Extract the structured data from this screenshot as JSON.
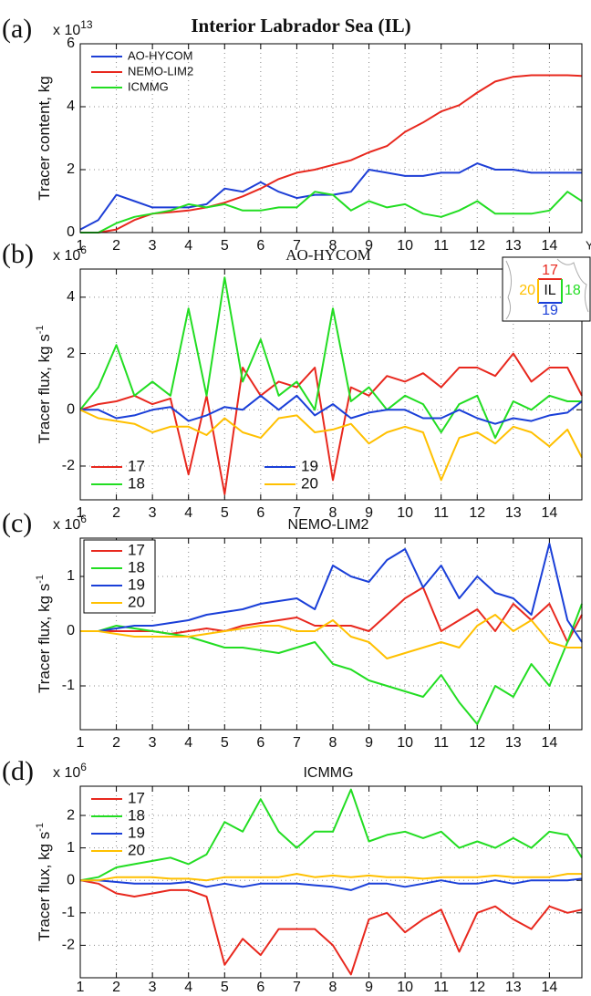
{
  "chart_data": [
    {
      "type": "line",
      "panel_label": "(a)",
      "title": "Interior Labrador Sea (IL)",
      "multiplier": {
        "base": "x 10",
        "exponent": "13"
      },
      "y_label": "Tracer content, kg",
      "x_label": "Years",
      "x": [
        1,
        1.5,
        2,
        2.5,
        3,
        3.5,
        4,
        4.5,
        5,
        5.5,
        6,
        6.5,
        7,
        7.5,
        8,
        8.5,
        9,
        9.5,
        10,
        10.5,
        11,
        11.5,
        12,
        12.5,
        13,
        13.5,
        14,
        14.5,
        14.9
      ],
      "xlim": [
        1,
        14.9
      ],
      "ylim": [
        0,
        6
      ],
      "xticks": [
        1,
        2,
        3,
        4,
        5,
        6,
        7,
        8,
        9,
        10,
        11,
        12,
        13,
        14
      ],
      "yticks": [
        0,
        2,
        4,
        6
      ],
      "grid": true,
      "legend": {
        "loc": "upper left",
        "columns": 1,
        "frame": false
      },
      "series": [
        {
          "name": "AO-HYCOM",
          "color": "#1e3fd6",
          "values": [
            0.1,
            0.4,
            1.2,
            1.0,
            0.8,
            0.8,
            0.8,
            0.9,
            1.4,
            1.3,
            1.6,
            1.3,
            1.1,
            1.2,
            1.2,
            1.3,
            2.0,
            1.9,
            1.8,
            1.8,
            1.9,
            1.9,
            2.2,
            2.0,
            2.0,
            1.9,
            1.9,
            1.9,
            1.9
          ]
        },
        {
          "name": "NEMO-LIM2",
          "color": "#e8281e",
          "values": [
            0,
            0,
            0.1,
            0.4,
            0.6,
            0.65,
            0.7,
            0.8,
            0.95,
            1.15,
            1.4,
            1.7,
            1.9,
            2.0,
            2.15,
            2.3,
            2.55,
            2.75,
            3.2,
            3.5,
            3.85,
            4.05,
            4.45,
            4.8,
            4.95,
            5.0,
            5.0,
            5.0,
            4.98
          ]
        },
        {
          "name": "ICMMG",
          "color": "#22dd22",
          "values": [
            0,
            0,
            0.3,
            0.5,
            0.6,
            0.7,
            0.9,
            0.8,
            0.9,
            0.7,
            0.7,
            0.8,
            0.8,
            1.3,
            1.2,
            0.7,
            1.0,
            0.8,
            0.9,
            0.6,
            0.5,
            0.7,
            1.0,
            0.6,
            0.6,
            0.6,
            0.7,
            1.3,
            1.0
          ]
        }
      ]
    },
    {
      "type": "line",
      "panel_label": "(b)",
      "title": "AO-HYCOM",
      "multiplier": {
        "base": "x 10",
        "exponent": "6"
      },
      "y_label": "Tracer flux, kg s",
      "y_label_exponent": "-1",
      "x": [
        1,
        1.5,
        2,
        2.5,
        3,
        3.5,
        4,
        4.5,
        5,
        5.5,
        6,
        6.5,
        7,
        7.5,
        8,
        8.5,
        9,
        9.5,
        10,
        10.5,
        11,
        11.5,
        12,
        12.5,
        13,
        13.5,
        14,
        14.5,
        14.9
      ],
      "xlim": [
        1,
        14.9
      ],
      "ylim": [
        -3.2,
        5
      ],
      "xticks": [
        1,
        2,
        3,
        4,
        5,
        6,
        7,
        8,
        9,
        10,
        11,
        12,
        13,
        14
      ],
      "yticks": [
        -2,
        0,
        2,
        4
      ],
      "grid": true,
      "legend": {
        "loc": "lower left",
        "columns": 2,
        "frame": false
      },
      "inset": {
        "center": "IL",
        "north": "17",
        "east": "18",
        "south": "19",
        "west": "20"
      },
      "series": [
        {
          "name": "17",
          "color": "#e8281e",
          "values": [
            0,
            0.2,
            0.3,
            0.5,
            0.2,
            0.4,
            -2.3,
            0.5,
            -3.0,
            1.5,
            0.5,
            1.0,
            0.8,
            1.5,
            -2.5,
            0.8,
            0.5,
            1.2,
            1.0,
            1.3,
            0.8,
            1.5,
            1.5,
            1.2,
            2.0,
            1.0,
            1.5,
            1.5,
            0.5
          ]
        },
        {
          "name": "18",
          "color": "#22dd22",
          "values": [
            0,
            0.8,
            2.3,
            0.5,
            1.0,
            0.5,
            3.6,
            0.5,
            4.7,
            1.0,
            2.5,
            0.5,
            1.0,
            0,
            3.6,
            0.3,
            0.8,
            0,
            0.5,
            0.2,
            -0.8,
            0.2,
            0.5,
            -1.0,
            0.3,
            0,
            0.5,
            0.3,
            0.3
          ]
        },
        {
          "name": "19",
          "color": "#1a3fd8",
          "values": [
            0,
            0,
            -0.3,
            -0.2,
            0,
            0.1,
            -0.4,
            -0.2,
            0.1,
            0,
            0.5,
            0,
            0.5,
            -0.2,
            0.2,
            -0.3,
            -0.1,
            0,
            0,
            -0.3,
            -0.3,
            0,
            -0.3,
            -0.5,
            -0.3,
            -0.4,
            -0.2,
            -0.1,
            0.3
          ]
        },
        {
          "name": "20",
          "color": "#ffc000",
          "values": [
            0,
            -0.3,
            -0.4,
            -0.5,
            -0.8,
            -0.6,
            -0.6,
            -0.9,
            -0.3,
            -0.8,
            -1.0,
            -0.3,
            -0.2,
            -0.8,
            -0.7,
            -0.5,
            -1.2,
            -0.8,
            -0.6,
            -0.8,
            -2.5,
            -1.0,
            -0.8,
            -1.2,
            -0.6,
            -0.8,
            -1.3,
            -0.7,
            -1.7
          ]
        }
      ]
    },
    {
      "type": "line",
      "panel_label": "(c)",
      "title": "NEMO-LIM2",
      "multiplier": {
        "base": "x 10",
        "exponent": "6"
      },
      "y_label": "Tracer flux, kg s",
      "y_label_exponent": "-1",
      "x": [
        1,
        1.5,
        2,
        2.5,
        3,
        3.5,
        4,
        4.5,
        5,
        5.5,
        6,
        6.5,
        7,
        7.5,
        8,
        8.5,
        9,
        9.5,
        10,
        10.5,
        11,
        11.5,
        12,
        12.5,
        13,
        13.5,
        14,
        14.5,
        14.9
      ],
      "xlim": [
        1,
        14.9
      ],
      "ylim": [
        -1.8,
        1.7
      ],
      "xticks": [
        1,
        2,
        3,
        4,
        5,
        6,
        7,
        8,
        9,
        10,
        11,
        12,
        13,
        14
      ],
      "yticks": [
        -1,
        0,
        1
      ],
      "grid": true,
      "legend": {
        "loc": "upper left",
        "columns": 1,
        "frame": true
      },
      "series": [
        {
          "name": "17",
          "color": "#e8281e",
          "values": [
            0,
            0,
            0,
            0,
            0,
            -0.05,
            0,
            0.05,
            0,
            0.1,
            0.15,
            0.2,
            0.25,
            0.1,
            0.1,
            0.1,
            0,
            0.3,
            0.6,
            0.8,
            0,
            0.2,
            0.4,
            0,
            0.5,
            0.2,
            0.5,
            -0.2,
            0.3
          ]
        },
        {
          "name": "18",
          "color": "#22dd22",
          "values": [
            0,
            0,
            0.1,
            0.05,
            0,
            -0.05,
            -0.1,
            -0.2,
            -0.3,
            -0.3,
            -0.35,
            -0.4,
            -0.3,
            -0.2,
            -0.6,
            -0.7,
            -0.9,
            -1.0,
            -1.1,
            -1.2,
            -0.8,
            -1.3,
            -1.7,
            -1.0,
            -1.2,
            -0.6,
            -1.0,
            -0.2,
            0.5
          ]
        },
        {
          "name": "19",
          "color": "#1a3fd8",
          "values": [
            0,
            0,
            0.05,
            0.1,
            0.1,
            0.15,
            0.2,
            0.3,
            0.35,
            0.4,
            0.5,
            0.55,
            0.6,
            0.4,
            1.2,
            1.0,
            0.9,
            1.3,
            1.5,
            0.8,
            1.2,
            0.6,
            1.0,
            0.7,
            0.6,
            0.3,
            1.6,
            0.2,
            -0.2
          ]
        },
        {
          "name": "20",
          "color": "#ffc000",
          "values": [
            0,
            0,
            -0.05,
            -0.1,
            -0.1,
            -0.1,
            -0.1,
            -0.05,
            0,
            0.05,
            0.1,
            0.1,
            0,
            0,
            0.2,
            -0.1,
            -0.2,
            -0.5,
            -0.4,
            -0.3,
            -0.2,
            -0.3,
            0.1,
            0.3,
            0,
            0.2,
            -0.2,
            -0.3,
            -0.3
          ]
        }
      ]
    },
    {
      "type": "line",
      "panel_label": "(d)",
      "title": "ICMMG",
      "multiplier": {
        "base": "x 10",
        "exponent": "6"
      },
      "y_label": "Tracer flux, kg s",
      "y_label_exponent": "-1",
      "x": [
        1,
        1.5,
        2,
        2.5,
        3,
        3.5,
        4,
        4.5,
        5,
        5.5,
        6,
        6.5,
        7,
        7.5,
        8,
        8.5,
        9,
        9.5,
        10,
        10.5,
        11,
        11.5,
        12,
        12.5,
        13,
        13.5,
        14,
        14.5,
        14.9
      ],
      "xlim": [
        1,
        14.9
      ],
      "ylim": [
        -3,
        2.9
      ],
      "xticks": [
        1,
        2,
        3,
        4,
        5,
        6,
        7,
        8,
        9,
        10,
        11,
        12,
        13,
        14
      ],
      "yticks": [
        -2,
        -1,
        0,
        1,
        2
      ],
      "grid": true,
      "legend": {
        "loc": "upper left",
        "columns": 1,
        "frame": false
      },
      "series": [
        {
          "name": "17",
          "color": "#e8281e",
          "values": [
            0,
            -0.1,
            -0.4,
            -0.5,
            -0.4,
            -0.3,
            -0.3,
            -0.5,
            -2.6,
            -1.8,
            -2.3,
            -1.5,
            -1.5,
            -1.5,
            -2.0,
            -2.9,
            -1.2,
            -1.0,
            -1.6,
            -1.2,
            -0.9,
            -2.2,
            -1.0,
            -0.8,
            -1.2,
            -1.5,
            -0.8,
            -1.0,
            -0.9
          ]
        },
        {
          "name": "18",
          "color": "#22dd22",
          "values": [
            0,
            0.1,
            0.4,
            0.5,
            0.6,
            0.7,
            0.5,
            0.8,
            1.8,
            1.5,
            2.5,
            1.5,
            1.0,
            1.5,
            1.5,
            2.8,
            1.2,
            1.4,
            1.5,
            1.3,
            1.5,
            1.0,
            1.2,
            1.0,
            1.3,
            1.0,
            1.5,
            1.4,
            0.7
          ]
        },
        {
          "name": "19",
          "color": "#1a3fd8",
          "values": [
            0,
            0,
            -0.05,
            -0.1,
            -0.1,
            -0.1,
            -0.05,
            -0.2,
            -0.1,
            -0.2,
            -0.1,
            -0.1,
            -0.1,
            -0.15,
            -0.2,
            -0.3,
            -0.1,
            -0.1,
            -0.2,
            -0.1,
            0,
            -0.1,
            -0.1,
            0,
            -0.1,
            0,
            0,
            0,
            0.05
          ]
        },
        {
          "name": "20",
          "color": "#ffc000",
          "values": [
            0,
            0,
            0.1,
            0.1,
            0.1,
            0.05,
            0.05,
            0,
            0.1,
            0.1,
            0.1,
            0.1,
            0.2,
            0.1,
            0.15,
            0.1,
            0.15,
            0.1,
            0.1,
            0.05,
            0.1,
            0.1,
            0.1,
            0.15,
            0.1,
            0.1,
            0.1,
            0.2,
            0.2
          ]
        }
      ]
    }
  ]
}
